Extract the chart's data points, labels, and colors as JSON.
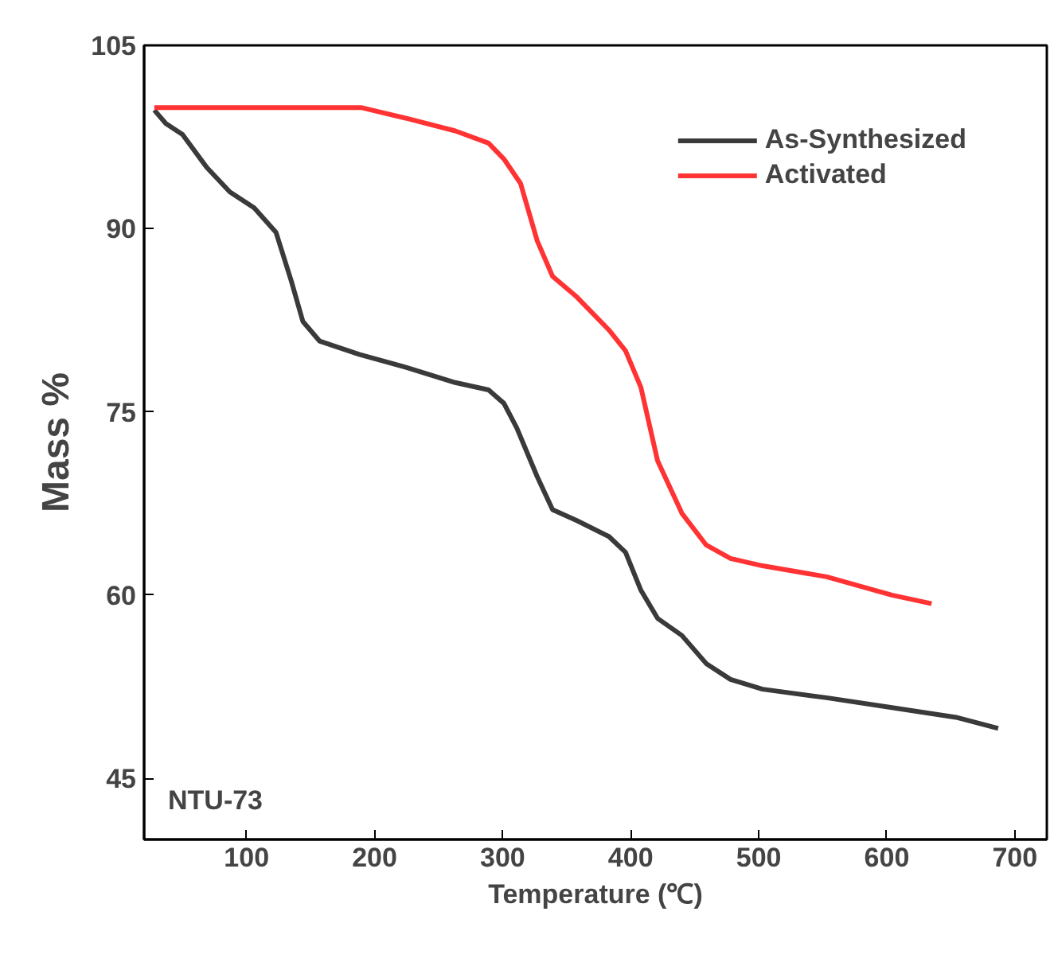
{
  "chart_data": {
    "type": "line",
    "xlabel": "Temperature (℃)",
    "ylabel": "Mass %",
    "xlim": [
      20,
      725
    ],
    "ylim": [
      40,
      105
    ],
    "xticks": [
      100,
      200,
      300,
      400,
      500,
      600,
      700
    ],
    "yticks": [
      45,
      60,
      75,
      90,
      105
    ],
    "grid": false,
    "legend": "top right",
    "marker": "none",
    "line_style": "solid",
    "annotations": [
      "NTU-73"
    ],
    "series": [
      {
        "name": "As-Synthesized",
        "color": "#3a3a3a",
        "x": [
          28,
          37,
          50,
          69,
          87,
          106,
          123,
          135,
          144,
          157,
          188,
          226,
          263,
          289,
          301,
          311,
          327,
          339,
          358,
          383,
          396,
          408,
          421,
          440,
          459,
          478,
          503,
          553,
          604,
          654,
          687
        ],
        "values": [
          99.7,
          98.6,
          97.7,
          95,
          93,
          91.7,
          89.7,
          85.7,
          82.4,
          80.8,
          79.7,
          78.6,
          77.4,
          76.8,
          75.7,
          73.7,
          69.7,
          67,
          66.1,
          64.8,
          63.5,
          60.4,
          58.1,
          56.7,
          54.4,
          53.1,
          52.3,
          51.6,
          50.8,
          50,
          49.1
        ]
      },
      {
        "name": "Activated",
        "color": "#ff3333",
        "x": [
          28,
          100,
          190,
          226,
          263,
          289,
          301,
          314,
          327,
          339,
          358,
          383,
          396,
          408,
          421,
          440,
          459,
          478,
          503,
          553,
          604,
          635
        ],
        "values": [
          99.9,
          99.9,
          99.9,
          99,
          98,
          97,
          95.7,
          93.7,
          89,
          86.1,
          84.4,
          81.7,
          80,
          77,
          71,
          66.7,
          64.1,
          63,
          62.4,
          61.5,
          60,
          59.3
        ]
      }
    ]
  }
}
